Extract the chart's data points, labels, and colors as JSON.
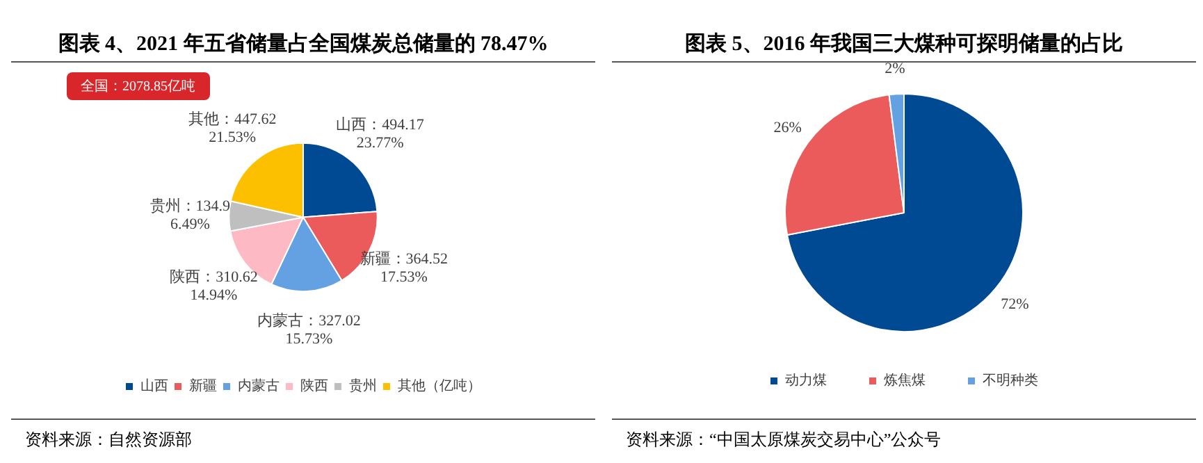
{
  "chart_data": [
    {
      "type": "pie",
      "title": "图表 4、2021 年五省储量占全国煤炭总储量的 78.47%",
      "categories": [
        "山西",
        "新疆",
        "内蒙古",
        "陕西",
        "贵州",
        "其他"
      ],
      "values": [
        494.17,
        364.52,
        327.02,
        310.62,
        134.9,
        447.62
      ],
      "colors": [
        "#004a93",
        "#eb5b5b",
        "#64a1e3",
        "#fdbac5",
        "#bfbfbf",
        "#fdc000"
      ],
      "value_labels": [
        "山西：494.17\n23.77%",
        "新疆：364.52\n17.53%",
        "内蒙古：327.02\n15.73%",
        "陕西：310.62\n14.94%",
        "贵州：134.9\n6.49%",
        "其他：447.62\n21.53%"
      ],
      "legend": "bottom",
      "legend_title": "（亿吨）",
      "annotations": [
        "全国：2078.85亿吨",
        "资料来源：自然资源部"
      ]
    },
    {
      "type": "pie",
      "title": "图表 5、2016 年我国三大煤种可探明储量的占比",
      "categories": [
        "动力煤",
        "炼焦煤",
        "不明种类"
      ],
      "values": [
        72,
        26,
        2
      ],
      "colors": [
        "#004a93",
        "#eb5b5b",
        "#64a1e3"
      ],
      "value_labels": [
        "72%",
        "26%",
        "2%"
      ],
      "legend": "bottom",
      "annotations": [
        "资料来源：“中国太原煤炭交易中心”公众号"
      ]
    }
  ]
}
